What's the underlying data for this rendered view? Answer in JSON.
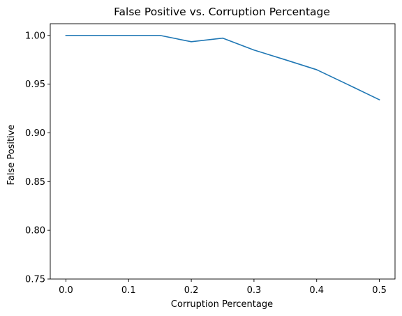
{
  "chart_data": {
    "type": "line",
    "title": "False Positive vs. Corruption Percentage",
    "xlabel": "Corruption Percentage",
    "ylabel": "False Positive",
    "xlim": [
      -0.025,
      0.525
    ],
    "ylim": [
      0.75,
      1.012
    ],
    "xticks": [
      0.0,
      0.1,
      0.2,
      0.3,
      0.4,
      0.5
    ],
    "xtick_labels": [
      "0.0",
      "0.1",
      "0.2",
      "0.3",
      "0.4",
      "0.5"
    ],
    "yticks": [
      0.75,
      0.8,
      0.85,
      0.9,
      0.95,
      1.0
    ],
    "ytick_labels": [
      "0.75",
      "0.80",
      "0.85",
      "0.90",
      "0.95",
      "1.00"
    ],
    "grid": false,
    "series": [
      {
        "color": "#1f77b4",
        "x": [
          0.0,
          0.05,
          0.1,
          0.15,
          0.2,
          0.25,
          0.3,
          0.35,
          0.4,
          0.45,
          0.5
        ],
        "y": [
          1.0,
          1.0,
          1.0,
          1.0,
          0.9935,
          0.9972,
          0.985,
          0.975,
          0.9648,
          0.9495,
          0.934
        ]
      }
    ]
  }
}
